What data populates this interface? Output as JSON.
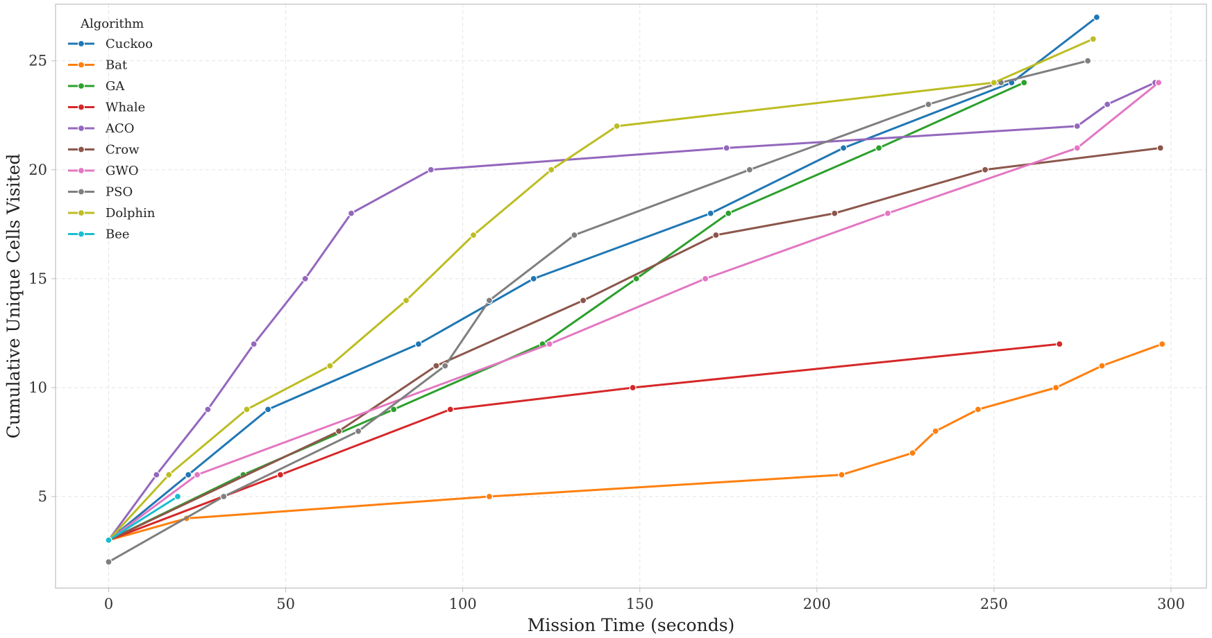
{
  "chart_data": {
    "type": "line",
    "xlabel": "Mission Time (seconds)",
    "ylabel": "Cumulative Unique Cells Visited",
    "xlim": [
      -15,
      310
    ],
    "ylim": [
      0.8,
      27.6
    ],
    "xticks": [
      0,
      50,
      100,
      150,
      200,
      250,
      300
    ],
    "yticks": [
      5,
      10,
      15,
      20,
      25
    ],
    "grid": true,
    "legend": {
      "title": "Algorithm",
      "placement": "top-left"
    },
    "series": [
      {
        "name": "Cuckoo",
        "color": "#1f77b4",
        "x": [
          0,
          22.5,
          45,
          87.5,
          120,
          170,
          207.5,
          255,
          279
        ],
        "y": [
          3,
          6,
          9,
          12,
          15,
          18,
          21,
          24,
          27
        ]
      },
      {
        "name": "Bat",
        "color": "#ff7f0e",
        "x": [
          0,
          22,
          107.5,
          207,
          227,
          233.5,
          245.5,
          267.5,
          280.5,
          297.5
        ],
        "y": [
          3,
          4,
          5,
          6,
          7,
          8,
          9,
          10,
          11,
          12
        ]
      },
      {
        "name": "GA",
        "color": "#2ca02c",
        "x": [
          0,
          38,
          80.5,
          122.5,
          149,
          175,
          217.5,
          258.5
        ],
        "y": [
          3,
          6,
          9,
          12,
          15,
          18,
          21,
          24
        ]
      },
      {
        "name": "Whale",
        "color": "#d62728",
        "x": [
          0,
          48.5,
          96.5,
          148,
          268.5
        ],
        "y": [
          3,
          6,
          9,
          10,
          12
        ]
      },
      {
        "name": "ACO",
        "color": "#9467bd",
        "x": [
          0,
          13.5,
          28,
          41,
          55.5,
          68.5,
          91,
          174.5,
          273.5,
          282,
          295.5
        ],
        "y": [
          3,
          6,
          9,
          12,
          15,
          18,
          20,
          21,
          22,
          23,
          24
        ]
      },
      {
        "name": "Crow",
        "color": "#8c564b",
        "x": [
          0,
          65,
          92.5,
          134,
          171.5,
          205,
          247.5,
          297
        ],
        "y": [
          3,
          8,
          11,
          14,
          17,
          18,
          20,
          21
        ]
      },
      {
        "name": "GWO",
        "color": "#e377c2",
        "x": [
          0,
          25,
          124.5,
          168.5,
          220,
          273.5,
          296.5
        ],
        "y": [
          3,
          6,
          12,
          15,
          18,
          21,
          24
        ]
      },
      {
        "name": "PSO",
        "color": "#7f7f7f",
        "x": [
          0,
          32.5,
          70.5,
          95,
          107.5,
          131.5,
          181,
          231.5,
          252,
          276.5
        ],
        "y": [
          2,
          5,
          8,
          11,
          14,
          17,
          20,
          23,
          24,
          25
        ]
      },
      {
        "name": "Dolphin",
        "color": "#bcbd22",
        "x": [
          0,
          17,
          39,
          62.5,
          84,
          103,
          125,
          143.5,
          250,
          278
        ],
        "y": [
          3,
          6,
          9,
          11,
          14,
          17,
          20,
          22,
          24,
          26
        ]
      },
      {
        "name": "Bee",
        "color": "#17becf",
        "x": [
          0,
          19.5
        ],
        "y": [
          3,
          5
        ]
      }
    ]
  }
}
